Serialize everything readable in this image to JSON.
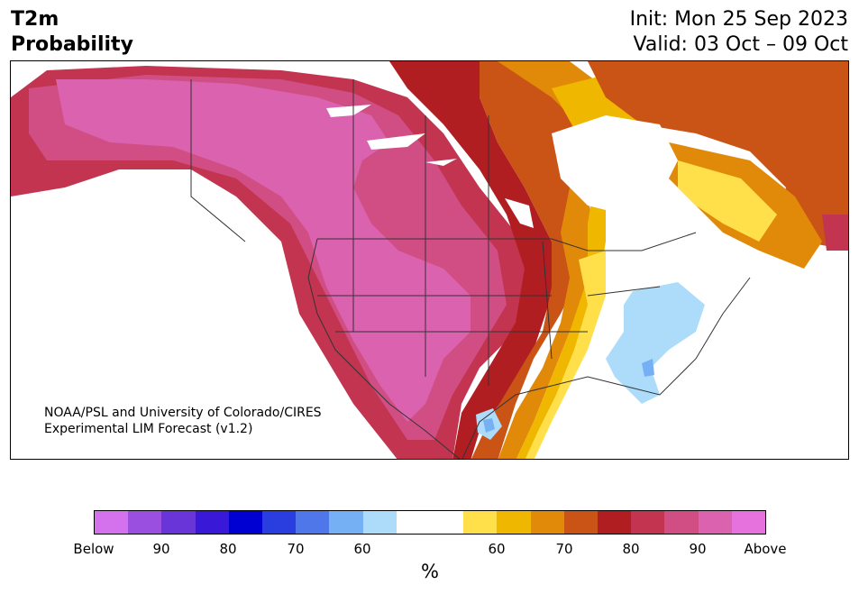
{
  "header": {
    "title_line1": "T2m",
    "title_line2": "Probability",
    "init": "Init: Mon 25 Sep 2023",
    "valid": "Valid: 03 Oct – 09 Oct"
  },
  "credit": {
    "line1": "NOAA/PSL and University of Colorado/CIRES",
    "line2": "Experimental LIM Forecast (v1.2)"
  },
  "colorbar": {
    "colors": [
      "#d471ec",
      "#9b4fe0",
      "#6a35d8",
      "#3a18d8",
      "#0000d2",
      "#2a3ee0",
      "#4f77ea",
      "#76b0f4",
      "#addcfb",
      "#ffffff",
      "#ffffff",
      "#ffe04a",
      "#f0b700",
      "#e18a0a",
      "#c95416",
      "#b11e22",
      "#c23450",
      "#d04e84",
      "#da62ae",
      "#e672de"
    ],
    "labels": [
      "Below",
      "90",
      "80",
      "70",
      "60",
      "60",
      "70",
      "80",
      "90",
      "Above"
    ],
    "unit": "%"
  },
  "map": {
    "colors": {
      "ocean": "#ffffff",
      "land_neutral": "#ffffff",
      "above_95": "#da62ae",
      "above_90": "#d04e84",
      "above_85": "#c23450",
      "above_80": "#b11e22",
      "above_75": "#c95416",
      "above_70": "#e18a0a",
      "above_65": "#f0b700",
      "above_60": "#ffe04a",
      "below_60": "#addcfb",
      "below_65": "#76b0f4",
      "border": "#333333"
    }
  }
}
